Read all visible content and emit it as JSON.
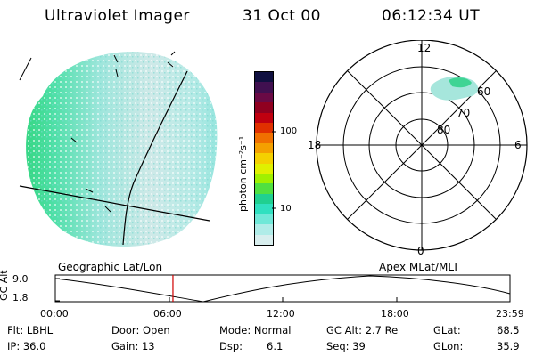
{
  "header": {
    "instrument": "Ultraviolet Imager",
    "date": "31 Oct 00",
    "time": "06:12:34 UT"
  },
  "colorbar": {
    "unit_label": "photon cm⁻²s⁻¹",
    "ticks": [
      "100",
      "10"
    ],
    "colors": [
      "#101040",
      "#401050",
      "#6a0a45",
      "#900020",
      "#c00010",
      "#e03000",
      "#f07000",
      "#f4a000",
      "#f4d000",
      "#e0f000",
      "#a0f000",
      "#50e040",
      "#20d090",
      "#30e0c0",
      "#70e8d8",
      "#b0ece8",
      "#d8eeee"
    ]
  },
  "polar_plot": {
    "mlt_labels": {
      "top": "12",
      "bottom": "0",
      "left": "18",
      "right": "6"
    },
    "mlat_labels": [
      "60",
      "70",
      "80"
    ]
  },
  "timeline": {
    "left_title": "Geographic Lat/Lon",
    "right_title": "Apex MLat/MLT",
    "y_axis_label": "GC Alt",
    "y_ticks": [
      "9.0",
      "1.8"
    ],
    "x_ticks": [
      "00:00",
      "06:00",
      "12:00",
      "18:00",
      "23:59"
    ],
    "cursor_color": "#d00000",
    "cursor_hour": 6.21
  },
  "status": {
    "row1": {
      "filter": "Flt: LBHL",
      "door": "Door: Open",
      "mode": "Mode: Normal",
      "gc_alt": "GC Alt: 2.7 Re",
      "glat_label": "GLat:",
      "glat_value": "68.5"
    },
    "row2": {
      "ip": "IP: 36.0",
      "gain": "Gain: 13",
      "dsp_label": "Dsp:",
      "dsp_value": "6.1",
      "seq": "Seq: 39",
      "glon_label": "GLon:",
      "glon_value": "35.9"
    }
  }
}
